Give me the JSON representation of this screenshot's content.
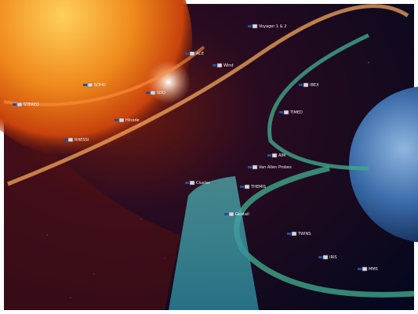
{
  "labels": [
    "Voyager 1 & 2",
    "STEREO",
    "SOHO",
    "ACE",
    "Wind",
    "Hinode",
    "SDO",
    "RHESSI",
    "TIMED",
    "AIM",
    "IBEX",
    "THEMIS",
    "Cluster",
    "Geotail",
    "TWINS",
    "IRIS",
    "Van Allen Probes",
    "MMS"
  ]
}
